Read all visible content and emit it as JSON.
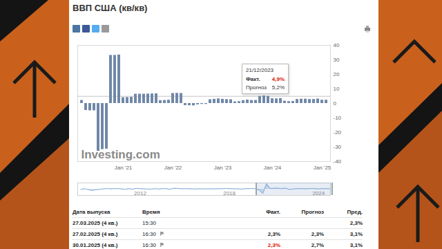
{
  "chart_data": [
    {
      "type": "bar",
      "title": "ВВП США (кв/кв)",
      "categories": [
        null,
        null,
        null,
        null,
        null,
        null,
        null,
        null,
        null,
        null,
        "Jan '21",
        null,
        null,
        null,
        null,
        null,
        null,
        null,
        null,
        null,
        null,
        null,
        "Jan '22",
        null,
        null,
        null,
        null,
        null,
        null,
        null,
        null,
        null,
        null,
        null,
        "Jan '23",
        null,
        null,
        null,
        null,
        null,
        null,
        null,
        null,
        null,
        null,
        null,
        "Jan '24",
        null,
        null,
        null,
        null,
        null,
        null,
        null,
        null,
        null,
        null,
        null,
        "Jan '25",
        null
      ],
      "values": [
        2.1,
        -4.8,
        -5.0,
        -5.0,
        -32.9,
        -31.7,
        -31.4,
        33.1,
        33.1,
        33.4,
        4.0,
        4.1,
        4.3,
        6.4,
        6.4,
        6.4,
        6.5,
        6.6,
        6.7,
        2.0,
        2.1,
        2.3,
        6.9,
        7.0,
        6.9,
        -1.4,
        -1.5,
        -1.6,
        -0.9,
        -0.6,
        -0.6,
        2.6,
        2.9,
        3.2,
        2.9,
        2.7,
        2.6,
        1.1,
        1.3,
        2.0,
        2.4,
        2.1,
        2.1,
        4.9,
        5.2,
        4.9,
        3.3,
        3.2,
        3.4,
        1.6,
        1.3,
        1.4,
        2.8,
        3.0,
        3.0,
        2.8,
        2.8,
        3.1,
        2.3,
        2.3
      ],
      "color": "#7088a8",
      "ylim": [
        -40,
        40
      ],
      "yticks": [
        -40,
        -30,
        -20,
        -10,
        0,
        10,
        20,
        30,
        40
      ],
      "grid": false,
      "watermark": "Investing.com",
      "tooltip": {
        "date": "21/12/2023",
        "items": [
          {
            "label": "Факт.",
            "value": 4.9,
            "value_label": "4,9%",
            "color": "#d91400"
          },
          {
            "label": "Прогноз",
            "value_label": "5,2%"
          }
        ]
      }
    },
    {
      "type": "area",
      "x": [
        2008,
        2008.25,
        2008.5,
        2008.75,
        2009,
        2009.25,
        2009.5,
        2009.75,
        2010,
        2010.25,
        2010.5,
        2010.75,
        2011,
        2011.25,
        2011.5,
        2011.75,
        2012,
        2012.25,
        2012.5,
        2012.75,
        2013,
        2013.25,
        2013.5,
        2013.75,
        2014,
        2014.25,
        2014.5,
        2014.75,
        2015,
        2015.25,
        2015.5,
        2015.75,
        2016,
        2016.25,
        2016.5,
        2016.75,
        2017,
        2017.25,
        2017.5,
        2017.75,
        2018,
        2018.25,
        2018.5,
        2018.75,
        2019,
        2019.25,
        2019.5,
        2019.75,
        2020,
        2020.25,
        2020.5,
        2020.75,
        2021,
        2021.25,
        2021.5,
        2021.75,
        2022,
        2022.25,
        2022.5,
        2022.75,
        2023,
        2023.25,
        2023.5,
        2023.75,
        2024,
        2024.25,
        2024.5,
        2024.75
      ],
      "values": [
        -1.6,
        2.3,
        -2.1,
        -8.5,
        -4.6,
        -0.7,
        1.5,
        4.5,
        1.5,
        3.7,
        3.0,
        2.0,
        -1.0,
        2.9,
        -0.1,
        4.7,
        3.2,
        1.7,
        0.5,
        0.5,
        3.6,
        0.5,
        3.2,
        3.2,
        -1.1,
        5.5,
        5.0,
        2.3,
        3.3,
        2.6,
        1.6,
        0.6,
        2.4,
        1.2,
        2.4,
        2.0,
        2.0,
        2.3,
        3.2,
        4.6,
        3.3,
        2.1,
        2.5,
        0.6,
        2.2,
        3.4,
        4.6,
        2.6,
        -5.5,
        -28.0,
        34.8,
        4.2,
        5.2,
        6.2,
        3.3,
        7.0,
        -1.0,
        0.3,
        2.7,
        3.4,
        2.8,
        2.4,
        4.4,
        3.2,
        1.6,
        3.0,
        3.1,
        2.4
      ],
      "color": "#7fa6d6",
      "xlim": [
        2007.8,
        2024.8
      ],
      "xticks": [
        2012,
        2018,
        2024
      ],
      "ylim": [
        -40,
        40
      ],
      "yticks": [],
      "tick_labels": "x"
    }
  ],
  "table": {
    "columns": [
      "Дата выпуска",
      "Время",
      "Факт.",
      "Прогноз",
      "Пред."
    ],
    "rows": [
      {
        "cells": [
          "27.03.2025 (4 кв.)",
          "15:30",
          null,
          null,
          "2,3%"
        ]
      },
      {
        "cells": [
          "27.02.2025 (4 кв.)",
          "16:30",
          "2,3%",
          "2,3%",
          "3,1%"
        ]
      },
      {
        "cells": [
          "30.01.2025 (4 кв.)",
          "16:30",
          "2,3%",
          "2,7%",
          "3,1%"
        ],
        "actual_color": "#d91400"
      }
    ]
  }
}
